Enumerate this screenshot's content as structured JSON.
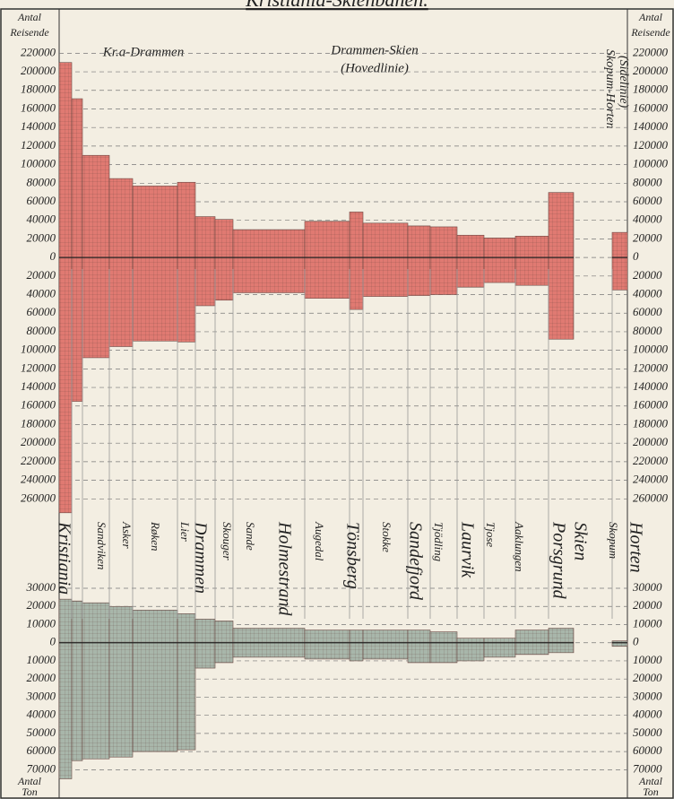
{
  "chart_data": [
    {
      "type": "bar",
      "title": "Kristiania-Skienbanen.",
      "y_label": [
        "Antal",
        "Reisende"
      ],
      "sections": [
        "Kr.a-Drammen",
        "Drammen-Skien",
        "(Hovedlinie)",
        "Skopum-Horten",
        "(Sidelinie)"
      ],
      "categories": [
        "Kristiania",
        "Sandviken",
        "Asker",
        "Røken",
        "Lier",
        "Drammen",
        "Skouger",
        "Sande",
        "Holmestrand",
        "Augedal",
        "Tönsberg",
        "Stokke",
        "Sandefjord",
        "Tjödling",
        "Laurvik",
        "Tjose",
        "Aaklungen",
        "Porsgrund",
        "Skien",
        "Skopum",
        "Horten"
      ],
      "series": [
        {
          "color": "#e07a72",
          "values": [
            210000,
            171000,
            110000,
            85000,
            77000,
            81000,
            44000,
            41000,
            30000,
            39000,
            49000,
            37000,
            34000,
            33000,
            24000,
            21000,
            23000,
            70000,
            null,
            27000,
            null
          ]
        },
        {
          "color": "#e07a72",
          "values": [
            -275000,
            -155000,
            -108000,
            -96000,
            -90000,
            -91000,
            -52000,
            -46000,
            -38000,
            -44000,
            -56000,
            -42000,
            -41000,
            -40000,
            -32000,
            -27000,
            -30000,
            -88000,
            null,
            -35000,
            null
          ]
        }
      ],
      "ylim": [
        -280000,
        230000
      ],
      "yticks": [
        220000,
        200000,
        180000,
        160000,
        140000,
        120000,
        100000,
        80000,
        60000,
        40000,
        20000,
        0,
        {
          "value": -20000,
          "label": "20000"
        },
        {
          "value": -40000,
          "label": "40000"
        },
        {
          "value": -60000,
          "label": "60000"
        },
        {
          "value": -80000,
          "label": "80000"
        },
        {
          "value": -100000,
          "label": "100000"
        },
        {
          "value": -120000,
          "label": "120000"
        },
        {
          "value": -140000,
          "label": "140000"
        },
        {
          "value": -160000,
          "label": "160000"
        },
        {
          "value": -180000,
          "label": "180000"
        },
        {
          "value": -200000,
          "label": "200000"
        },
        {
          "value": -220000,
          "label": "220000"
        },
        {
          "value": -240000,
          "label": "240000"
        },
        {
          "value": -260000,
          "label": "260000"
        }
      ],
      "grid": true
    },
    {
      "type": "bar",
      "y_label": [
        "Antal",
        "Ton"
      ],
      "series": [
        {
          "color": "#a8b6aa",
          "values": [
            24000,
            23000,
            22000,
            20000,
            18000,
            16000,
            13000,
            12000,
            8000,
            7000,
            7000,
            7000,
            7000,
            6000,
            2500,
            2500,
            7000,
            8000,
            null,
            1000,
            null
          ]
        },
        {
          "color": "#a8b6aa",
          "values": [
            -75000,
            -65000,
            -64000,
            -63000,
            -60000,
            -59000,
            -14000,
            -11000,
            -8000,
            -9000,
            -10000,
            -9000,
            -11000,
            -11000,
            -10000,
            -8000,
            -6500,
            -5500,
            null,
            -2000,
            null
          ]
        }
      ],
      "ylim": [
        -75000,
        30000
      ],
      "yticks": [
        30000,
        20000,
        10000,
        0,
        {
          "value": -10000,
          "label": "10000"
        },
        {
          "value": -20000,
          "label": "20000"
        },
        {
          "value": -30000,
          "label": "30000"
        },
        {
          "value": -40000,
          "label": "40000"
        },
        {
          "value": -50000,
          "label": "50000"
        },
        {
          "value": -60000,
          "label": "60000"
        },
        {
          "value": -70000,
          "label": "70000"
        }
      ],
      "grid": true
    }
  ]
}
